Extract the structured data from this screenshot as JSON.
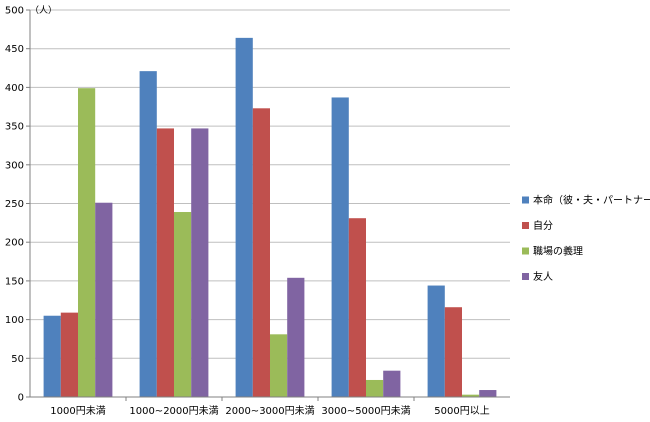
{
  "chart_data": {
    "type": "bar",
    "title": "",
    "xlabel": "",
    "ylabel": "",
    "unit": "（人）",
    "ylim": [
      0,
      500
    ],
    "ytick_step": 50,
    "grid": true,
    "legend_position": "right",
    "categories": [
      "1000円未満",
      "1000~2000円未満",
      "2000~3000円未満",
      "3000~5000円未満",
      "5000円以上"
    ],
    "series": [
      {
        "name": "本命（彼・夫・パートナー）",
        "color": "#4F81BD",
        "values": [
          105,
          421,
          464,
          387,
          144
        ]
      },
      {
        "name": "自分",
        "color": "#C0504D",
        "values": [
          109,
          347,
          373,
          231,
          116
        ]
      },
      {
        "name": "職場の義理",
        "color": "#9BBB59",
        "values": [
          399,
          239,
          81,
          22,
          3
        ]
      },
      {
        "name": "友人",
        "color": "#8064A2",
        "values": [
          251,
          347,
          154,
          34,
          9
        ]
      }
    ]
  }
}
